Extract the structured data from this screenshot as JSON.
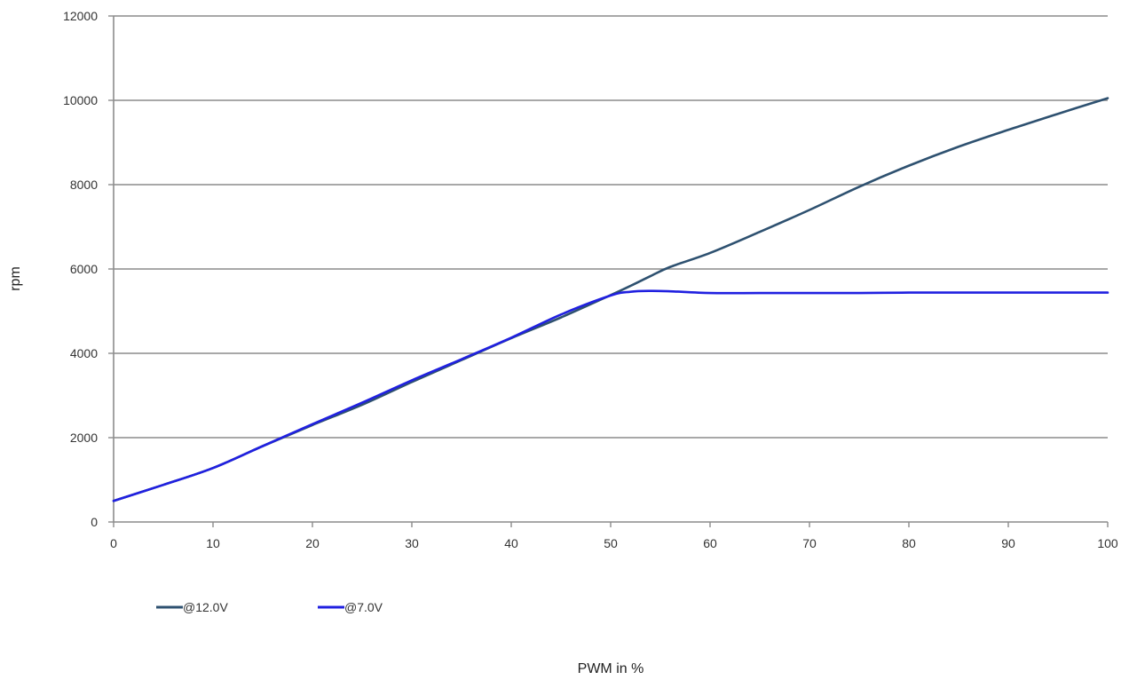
{
  "chart_data": {
    "type": "line",
    "title": "",
    "xlabel": "PWM in %",
    "ylabel": "rpm",
    "xlim": [
      0,
      100
    ],
    "ylim": [
      0,
      12000
    ],
    "x_ticks": [
      0,
      10,
      20,
      30,
      40,
      50,
      60,
      70,
      80,
      90,
      100
    ],
    "y_ticks": [
      0,
      2000,
      4000,
      6000,
      8000,
      10000,
      12000
    ],
    "grid": "horizontal",
    "legend_position": "bottom-left",
    "x": [
      0,
      5,
      10,
      15,
      20,
      25,
      30,
      35,
      40,
      45,
      50,
      52,
      54,
      56,
      60,
      65,
      70,
      75,
      80,
      85,
      90,
      95,
      100
    ],
    "series": [
      {
        "name": "@12.0V",
        "color": "#2e5170",
        "values": [
          500,
          880,
          1280,
          1800,
          2300,
          2780,
          3320,
          3840,
          4360,
          4850,
          5380,
          5600,
          5830,
          6050,
          6380,
          6880,
          7400,
          7950,
          8450,
          8900,
          9300,
          9680,
          10050
        ]
      },
      {
        "name": "@7.0V",
        "color": "#2020e0",
        "values": [
          500,
          880,
          1280,
          1800,
          2320,
          2830,
          3360,
          3860,
          4370,
          4920,
          5370,
          5460,
          5480,
          5470,
          5430,
          5430,
          5430,
          5430,
          5440,
          5440,
          5440,
          5440,
          5440
        ]
      }
    ]
  }
}
